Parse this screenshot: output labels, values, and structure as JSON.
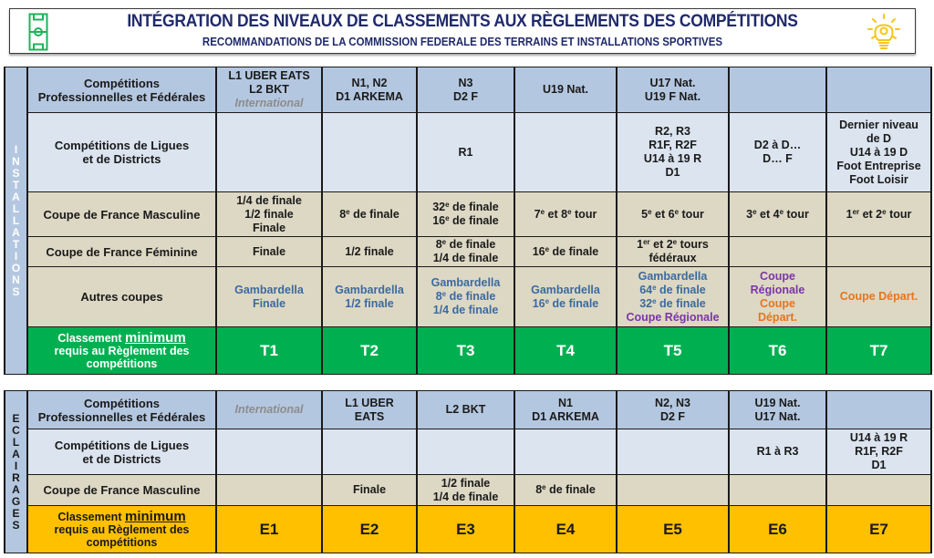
{
  "banner": {
    "title": "INTÉGRATION DES NIVEAUX DE CLASSEMENTS AUX RÈGLEMENTS DES COMPÉTITIONS",
    "subtitle": "RECOMMANDATIONS DE LA COMMISSION FEDERALE DES TERRAINS ET INSTALLATIONS SPORTIVES",
    "icon_left": "football-pitch-icon",
    "icon_right": "lightbulb-icon",
    "colors": {
      "title": "#1f2a6b",
      "pitch_icon": "#1fb35a",
      "bulb_icon": "#f5c518"
    }
  },
  "installations": {
    "side_label": "INSTALLATIONS",
    "side_color": "#0aaa4c",
    "rows": {
      "pro": {
        "label": [
          "Compétitions",
          "Professionnelles et Fédérales"
        ],
        "cells": [
          {
            "lines": [
              "L1 UBER EATS",
              "L2 BKT"
            ],
            "note": "International"
          },
          {
            "lines": [
              "N1, N2",
              "D1 ARKEMA"
            ]
          },
          {
            "lines": [
              "N3",
              "D2 F"
            ]
          },
          {
            "lines": [
              "U19 Nat."
            ]
          },
          {
            "lines": [
              "U17 Nat.",
              "U19 F Nat."
            ]
          },
          {
            "lines": []
          },
          {
            "lines": []
          }
        ]
      },
      "ligues": {
        "label": [
          "Compétitions de Ligues",
          "et de Districts"
        ],
        "cells": [
          {
            "lines": []
          },
          {
            "lines": []
          },
          {
            "lines": [
              "R1"
            ]
          },
          {
            "lines": []
          },
          {
            "lines": [
              "R2, R3",
              "R1F, R2F",
              "U14 à 19 R",
              "D1"
            ]
          },
          {
            "lines": [
              "D2 à D…",
              "D… F"
            ]
          },
          {
            "lines": [
              "Dernier niveau",
              "de D",
              "U14 à 19 D",
              "Foot Entreprise",
              "Foot Loisir"
            ]
          }
        ]
      },
      "cdf_m": {
        "label": "Coupe de France Masculine",
        "cells": [
          {
            "lines": [
              "1/4 de finale",
              "1/2 finale",
              "Finale"
            ]
          },
          {
            "lines": [
              "8e de finale"
            ]
          },
          {
            "lines": [
              "32e de finale",
              "16e de finale"
            ]
          },
          {
            "lines": [
              "7e et 8e tour"
            ]
          },
          {
            "lines": [
              "5e et 6e tour"
            ]
          },
          {
            "lines": [
              "3e et 4e tour"
            ]
          },
          {
            "lines": [
              "1er et 2e tour"
            ]
          }
        ]
      },
      "cdf_f": {
        "label": "Coupe de France Féminine",
        "cells": [
          {
            "lines": [
              "Finale"
            ]
          },
          {
            "lines": [
              "1/2 finale"
            ]
          },
          {
            "lines": [
              "8e de finale",
              "1/4 de finale"
            ]
          },
          {
            "lines": [
              "16e de finale"
            ]
          },
          {
            "lines": [
              "1er et 2e tours",
              "fédéraux"
            ]
          },
          {
            "lines": []
          },
          {
            "lines": []
          }
        ]
      },
      "autres": {
        "label": "Autres coupes",
        "cells": [
          {
            "lines": [
              {
                "t": "Gambardella",
                "c": "blue"
              },
              {
                "t": "Finale",
                "c": "blue"
              }
            ]
          },
          {
            "lines": [
              {
                "t": "Gambardella",
                "c": "blue"
              },
              {
                "t": "1/2 finale",
                "c": "blue"
              }
            ]
          },
          {
            "lines": [
              {
                "t": "Gambardella",
                "c": "blue"
              },
              {
                "t": "8e de finale",
                "c": "blue"
              },
              {
                "t": "1/4 de finale",
                "c": "blue"
              }
            ]
          },
          {
            "lines": [
              {
                "t": "Gambardella",
                "c": "blue"
              },
              {
                "t": "16e de finale",
                "c": "blue"
              }
            ]
          },
          {
            "lines": [
              {
                "t": "Gambardella",
                "c": "blue"
              },
              {
                "t": "64e de finale",
                "c": "blue"
              },
              {
                "t": "32e de finale",
                "c": "blue"
              },
              {
                "t": "Coupe Régionale",
                "c": "purple"
              }
            ]
          },
          {
            "lines": [
              {
                "t": "Coupe",
                "c": "purple"
              },
              {
                "t": "Régionale",
                "c": "purple"
              },
              {
                "t": "Coupe",
                "c": "orange"
              },
              {
                "t": "Départ.",
                "c": "orange"
              }
            ]
          },
          {
            "lines": [
              {
                "t": "Coupe Départ.",
                "c": "orange"
              }
            ]
          }
        ]
      },
      "classement": {
        "label_pre": "Classement",
        "label_emph": "minimum",
        "label_post": [
          "requis au Règlement des",
          "compétitions"
        ],
        "values": [
          "T1",
          "T2",
          "T3",
          "T4",
          "T5",
          "T6",
          "T7"
        ],
        "color": "#00b050"
      }
    }
  },
  "eclairages": {
    "side_label": "ECLAIRAGES",
    "side_color": "#f7be00",
    "rows": {
      "pro": {
        "label": [
          "Compétitions",
          "Professionnelles et Fédérales"
        ],
        "cells": [
          {
            "lines": [],
            "note": "International"
          },
          {
            "lines": [
              "L1 UBER",
              "EATS"
            ]
          },
          {
            "lines": [
              "L2 BKT"
            ]
          },
          {
            "lines": [
              "N1",
              "D1 ARKEMA"
            ]
          },
          {
            "lines": [
              "N2, N3",
              "D2 F"
            ]
          },
          {
            "lines": [
              "U19 Nat.",
              "U17 Nat."
            ]
          },
          {
            "lines": []
          }
        ]
      },
      "ligues": {
        "label": [
          "Compétitions de Ligues",
          "et de Districts"
        ],
        "cells": [
          {
            "lines": []
          },
          {
            "lines": []
          },
          {
            "lines": []
          },
          {
            "lines": []
          },
          {
            "lines": []
          },
          {
            "lines": [
              "R1 à R3"
            ]
          },
          {
            "lines": [
              "U14 à 19 R",
              "R1F, R2F",
              "D1"
            ]
          }
        ]
      },
      "cdf_m": {
        "label": "Coupe de France Masculine",
        "cells": [
          {
            "lines": []
          },
          {
            "lines": [
              "Finale"
            ]
          },
          {
            "lines": [
              "1/2 finale",
              "1/4 de finale"
            ]
          },
          {
            "lines": [
              "8e de finale"
            ]
          },
          {
            "lines": []
          },
          {
            "lines": []
          },
          {
            "lines": []
          }
        ]
      },
      "classement": {
        "label_pre": "Classement",
        "label_emph": "minimum",
        "label_post": [
          "requis au Règlement des",
          "compétitions"
        ],
        "values": [
          "E1",
          "E2",
          "E3",
          "E4",
          "E5",
          "E6",
          "E7"
        ],
        "color": "#ffc000"
      }
    }
  },
  "colors": {
    "header_row": "#b4c7e0",
    "ligue_row": "#dbe4ef",
    "coupe_row": "#ddd8c4",
    "gambardella_text": "#3b6aa0",
    "regionale_text": "#7b35a8",
    "depart_text": "#e8741c",
    "international_text": "#8c8c8c"
  }
}
